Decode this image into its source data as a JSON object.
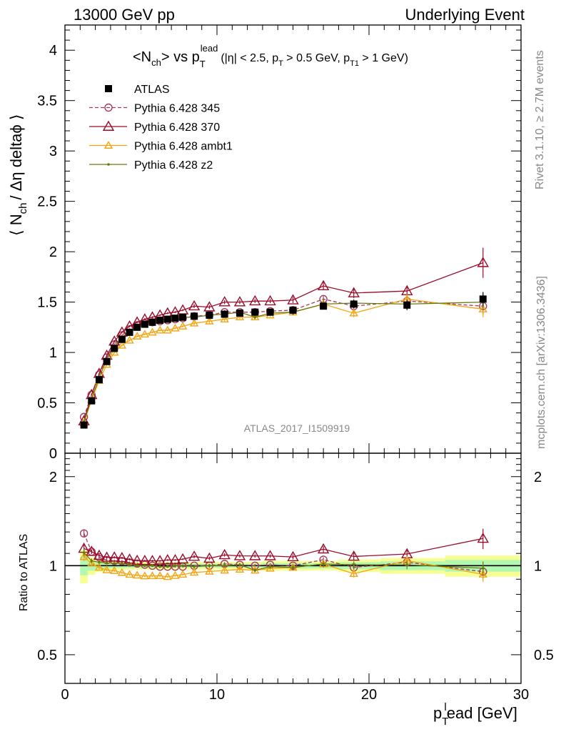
{
  "header": {
    "left": "13000 GeV pp",
    "right": "Underlying Event"
  },
  "side_labels": {
    "top": "Rivet 3.1.10, ≥ 2.7M events",
    "bottom": "mcplots.cern.ch [arXiv:1306.3436]"
  },
  "analysis_id": "ATLAS_2017_I1509919",
  "title": {
    "main": "<N",
    "main_sub": "ch",
    "vs": "> vs p",
    "vs_sub": "T",
    "vs_sup": "lead",
    "cuts": "(|η| < 2.5, p",
    "cuts_sub1": "T",
    "cuts_mid": " > 0.5 GeV, p",
    "cuts_sub2": "T1",
    "cuts_end": " > 1 GeV)"
  },
  "y_title": {
    "pre": "⟨ N",
    "sub": "ch",
    "post": "/ Δη deltaϕ ⟩"
  },
  "ratio_ylabel": "Ratio to ATLAS",
  "x_title": {
    "p": "p",
    "sub": "T",
    "sup": "l",
    "post": "ead [GeV]"
  },
  "colors": {
    "atlas": "#000000",
    "p345": "#a43b5b",
    "p370": "#9b0c2a",
    "ambt1": "#f2a411",
    "z2": "#6b7a0c",
    "band_outer": "#f6ff94",
    "band_inner": "#b3f8b0"
  },
  "chart_data": [
    {
      "type": "scatter",
      "title": "<Nch> vs pT lead (|η| < 2.5, pT > 0.5 GeV, pT1 > 1 GeV)",
      "xlabel": "pTlead [GeV]",
      "ylabel": "⟨ Nch / Δη deltaϕ ⟩",
      "xlim": [
        0,
        30
      ],
      "ylim": [
        0,
        4.25
      ],
      "yticks": [
        0,
        0.5,
        1,
        1.5,
        2,
        2.5,
        3,
        3.5,
        4
      ],
      "xticks": [
        0,
        10,
        20,
        30
      ],
      "legend_position": "top-left",
      "x": [
        1.25,
        1.75,
        2.25,
        2.75,
        3.25,
        3.75,
        4.25,
        4.75,
        5.25,
        5.75,
        6.25,
        6.75,
        7.25,
        7.75,
        8.5,
        9.5,
        10.5,
        11.5,
        12.5,
        13.5,
        15,
        17,
        19,
        22.5,
        27.5
      ],
      "series": [
        {
          "name": "ATLAS",
          "marker": "square",
          "line": "none",
          "values": [
            0.28,
            0.52,
            0.73,
            0.91,
            1.04,
            1.13,
            1.2,
            1.25,
            1.28,
            1.3,
            1.32,
            1.33,
            1.34,
            1.35,
            1.36,
            1.37,
            1.38,
            1.39,
            1.4,
            1.4,
            1.42,
            1.46,
            1.48,
            1.47,
            1.53
          ],
          "errors": [
            0.02,
            0.02,
            0.02,
            0.02,
            0.02,
            0.02,
            0.02,
            0.02,
            0.02,
            0.02,
            0.02,
            0.02,
            0.02,
            0.02,
            0.02,
            0.02,
            0.02,
            0.02,
            0.02,
            0.03,
            0.03,
            0.03,
            0.04,
            0.05,
            0.07
          ]
        },
        {
          "name": "Pythia 6.428 345",
          "marker": "open-circle",
          "line": "dashed",
          "values": [
            0.36,
            0.58,
            0.78,
            0.95,
            1.08,
            1.17,
            1.23,
            1.27,
            1.29,
            1.3,
            1.31,
            1.32,
            1.33,
            1.34,
            1.36,
            1.37,
            1.4,
            1.4,
            1.4,
            1.41,
            1.42,
            1.53,
            1.46,
            1.51,
            1.46
          ],
          "errors": [
            0.01,
            0.01,
            0.01,
            0.01,
            0.01,
            0.01,
            0.01,
            0.01,
            0.01,
            0.01,
            0.01,
            0.01,
            0.01,
            0.01,
            0.01,
            0.02,
            0.02,
            0.02,
            0.02,
            0.02,
            0.02,
            0.03,
            0.04,
            0.05,
            0.08
          ]
        },
        {
          "name": "Pythia 6.428 370",
          "marker": "open-triangle",
          "line": "solid",
          "values": [
            0.32,
            0.58,
            0.79,
            0.97,
            1.11,
            1.2,
            1.26,
            1.3,
            1.33,
            1.35,
            1.37,
            1.39,
            1.4,
            1.42,
            1.46,
            1.45,
            1.5,
            1.5,
            1.51,
            1.51,
            1.52,
            1.66,
            1.59,
            1.61,
            1.89
          ],
          "errors": [
            0.01,
            0.01,
            0.01,
            0.01,
            0.01,
            0.01,
            0.01,
            0.01,
            0.01,
            0.01,
            0.01,
            0.01,
            0.01,
            0.01,
            0.02,
            0.02,
            0.02,
            0.02,
            0.02,
            0.02,
            0.03,
            0.04,
            0.05,
            0.05,
            0.15
          ]
        },
        {
          "name": "Pythia 6.428 ambt1",
          "marker": "open-triangle",
          "line": "solid",
          "values": [
            0.3,
            0.53,
            0.72,
            0.88,
            1.0,
            1.07,
            1.12,
            1.16,
            1.18,
            1.2,
            1.22,
            1.22,
            1.24,
            1.26,
            1.29,
            1.31,
            1.33,
            1.35,
            1.35,
            1.37,
            1.4,
            1.48,
            1.39,
            1.53,
            1.43
          ],
          "errors": [
            0.01,
            0.01,
            0.01,
            0.01,
            0.01,
            0.01,
            0.01,
            0.01,
            0.01,
            0.01,
            0.01,
            0.01,
            0.01,
            0.01,
            0.02,
            0.02,
            0.02,
            0.02,
            0.02,
            0.02,
            0.03,
            0.04,
            0.04,
            0.05,
            0.08
          ]
        },
        {
          "name": "Pythia 6.428 z2",
          "marker": "dot",
          "line": "solid",
          "values": [
            0.31,
            0.54,
            0.75,
            0.93,
            1.06,
            1.15,
            1.21,
            1.25,
            1.28,
            1.3,
            1.31,
            1.32,
            1.34,
            1.35,
            1.35,
            1.37,
            1.38,
            1.4,
            1.35,
            1.39,
            1.4,
            1.48,
            1.49,
            1.48,
            1.5
          ],
          "errors": [
            0.01,
            0.01,
            0.01,
            0.01,
            0.01,
            0.01,
            0.01,
            0.01,
            0.01,
            0.01,
            0.01,
            0.01,
            0.01,
            0.01,
            0.02,
            0.02,
            0.02,
            0.02,
            0.02,
            0.02,
            0.03,
            0.04,
            0.04,
            0.05,
            0.08
          ]
        }
      ]
    },
    {
      "type": "scatter",
      "ylabel": "Ratio to ATLAS",
      "xlabel": "pTlead [GeV]",
      "xlim": [
        0,
        30
      ],
      "ylim": [
        0.4,
        2.4
      ],
      "log_y": true,
      "yticks": [
        0.5,
        1,
        2
      ],
      "reference_line": 1,
      "uncertainty_band": true
    }
  ]
}
